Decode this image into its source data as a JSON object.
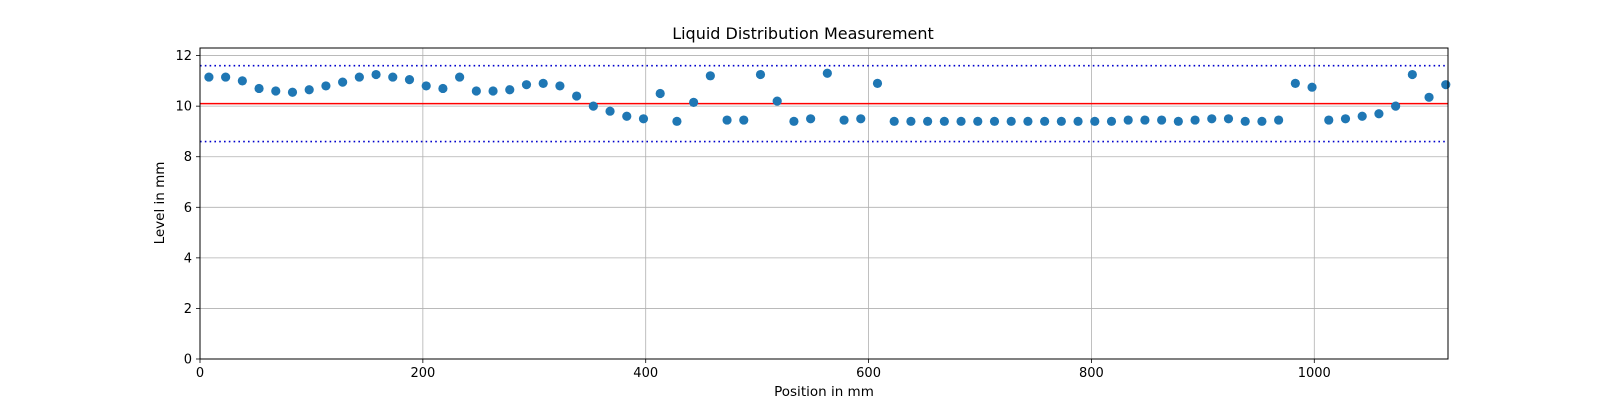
{
  "chart_data": {
    "type": "scatter",
    "title": "Liquid Distribution Measurement",
    "xlabel": "Position in mm",
    "ylabel": "Level in mm",
    "xlim": [
      0,
      1120
    ],
    "ylim": [
      0,
      12.3
    ],
    "xticks": [
      0,
      200,
      400,
      600,
      800,
      1000
    ],
    "yticks": [
      0,
      2,
      4,
      6,
      8,
      10,
      12
    ],
    "grid": true,
    "series": [
      {
        "color": "#1f77b4",
        "x": [
          8,
          23,
          38,
          53,
          68,
          83,
          98,
          113,
          128,
          143,
          158,
          173,
          188,
          203,
          218,
          233,
          248,
          263,
          278,
          293,
          308,
          323,
          338,
          353,
          368,
          383,
          398,
          413,
          428,
          443,
          458,
          473,
          488,
          503,
          518,
          533,
          548,
          563,
          578,
          593,
          608,
          623,
          638,
          653,
          668,
          683,
          698,
          713,
          728,
          743,
          758,
          773,
          788,
          803,
          818,
          833,
          848,
          863,
          878,
          893,
          908,
          923,
          938,
          953,
          968,
          983,
          998,
          1013,
          1028,
          1043,
          1058,
          1073,
          1088,
          1103,
          1118
        ],
        "y": [
          11.15,
          11.15,
          11.0,
          10.7,
          10.6,
          10.55,
          10.65,
          10.8,
          10.95,
          11.15,
          11.25,
          11.15,
          11.05,
          10.8,
          10.7,
          11.15,
          10.6,
          10.6,
          10.65,
          10.85,
          10.9,
          10.8,
          10.4,
          10.0,
          9.8,
          9.6,
          9.5,
          10.5,
          9.4,
          10.15,
          11.2,
          9.45,
          9.45,
          11.25,
          10.2,
          9.4,
          9.5,
          11.3,
          9.45,
          9.5,
          10.9,
          9.4,
          9.4,
          9.4,
          9.4,
          9.4,
          9.4,
          9.4,
          9.4,
          9.4,
          9.4,
          9.4,
          9.4,
          9.4,
          9.4,
          9.45,
          9.45,
          9.45,
          9.4,
          9.45,
          9.5,
          9.5,
          9.4,
          9.4,
          9.45,
          10.9,
          10.75,
          9.45,
          9.5,
          9.6,
          9.7,
          10.0,
          11.25,
          10.35,
          10.85
        ]
      }
    ],
    "reference_lines": [
      {
        "y": 10.1,
        "color": "#ff0000",
        "style": "solid"
      },
      {
        "y": 11.6,
        "color": "#0000cc",
        "style": "dotted"
      },
      {
        "y": 8.6,
        "color": "#0000cc",
        "style": "dotted"
      }
    ]
  }
}
